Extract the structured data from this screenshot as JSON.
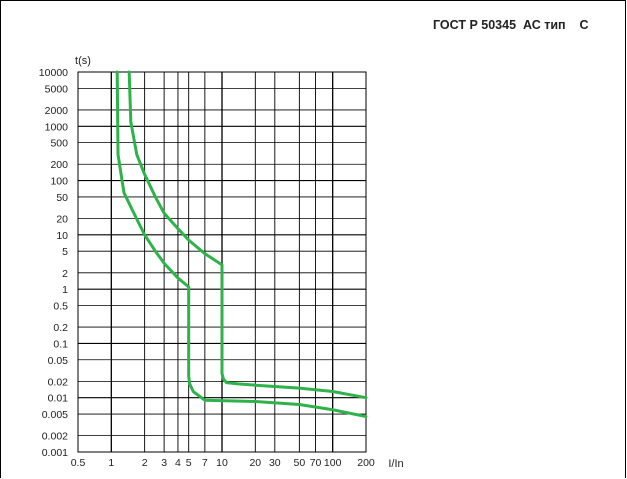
{
  "title": "ГОСТ Р 50345  АС тип    С",
  "chart_data": {
    "type": "line",
    "title": "ГОСТ Р 50345  АС тип    С",
    "xlabel": "I/In",
    "ylabel": "t(s)",
    "xscale": "log",
    "yscale": "log",
    "xlim": [
      0.5,
      200
    ],
    "ylim": [
      0.001,
      10000
    ],
    "x_ticks": [
      "0.5",
      "1",
      "2",
      "3",
      "4",
      "5",
      "7",
      "10",
      "20",
      "30",
      "50",
      "70",
      "100",
      "200"
    ],
    "y_ticks": [
      "10000",
      "5000",
      "2000",
      "1000",
      "500",
      "200",
      "100",
      "50",
      "20",
      "10",
      "5",
      "2",
      "1",
      "0.5",
      "0.2",
      "0.1",
      "0.05",
      "0.02",
      "0.01",
      "0.005",
      "0.002",
      "0.001"
    ],
    "color": "#2db34a",
    "series": [
      {
        "x": [
          1.13,
          1.15,
          1.3,
          1.6,
          2.0,
          2.5,
          3.0,
          4.0,
          5.0,
          5.0,
          5.1,
          5.5,
          7.0,
          20,
          50,
          100,
          200
        ],
        "y": [
          10000,
          300,
          60,
          25,
          10,
          5,
          3,
          1.6,
          1.1,
          0.025,
          0.018,
          0.013,
          0.009,
          0.0085,
          0.0075,
          0.006,
          0.0045
        ]
      },
      {
        "x": [
          1.45,
          1.5,
          1.7,
          2.0,
          2.5,
          3.0,
          4.0,
          5.0,
          7.0,
          10,
          10,
          10.3,
          11,
          14,
          20,
          50,
          100,
          200
        ],
        "y": [
          10000,
          1200,
          300,
          130,
          50,
          25,
          13,
          8,
          4.5,
          2.8,
          0.028,
          0.022,
          0.019,
          0.018,
          0.017,
          0.015,
          0.013,
          0.01
        ]
      }
    ]
  }
}
